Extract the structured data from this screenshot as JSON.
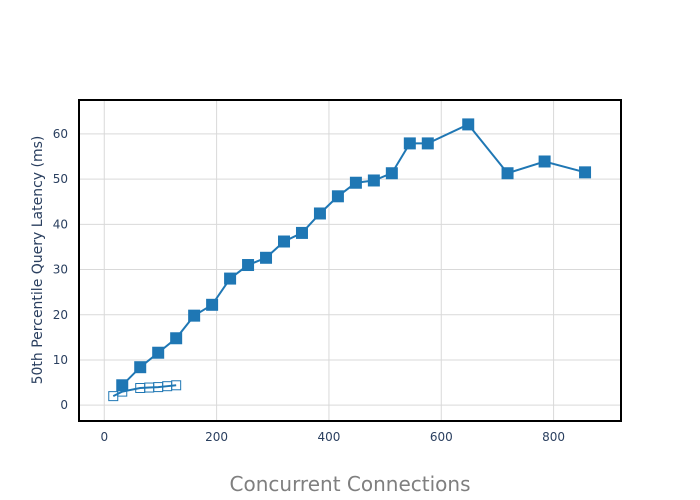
{
  "chart_data": {
    "type": "line",
    "title": "",
    "xlabel": "Concurrent Connections",
    "ylabel": "50th Percentile Query Latency (ms)",
    "xlim": [
      -45,
      920
    ],
    "ylim": [
      -3.5,
      67.5
    ],
    "xticks": [
      0,
      200,
      400,
      600,
      800
    ],
    "yticks": [
      0,
      10,
      20,
      30,
      40,
      50,
      60
    ],
    "grid": true,
    "legend": "none",
    "series": [
      {
        "name": "series-filled",
        "marker": "square-filled",
        "color": "#1f77b4",
        "x": [
          32,
          64,
          96,
          128,
          160,
          192,
          224,
          256,
          288,
          320,
          352,
          384,
          416,
          448,
          480,
          512,
          544,
          576,
          648,
          718,
          784,
          856
        ],
        "y": [
          4.4,
          8.4,
          11.6,
          14.8,
          19.8,
          22.2,
          28.0,
          31.0,
          32.6,
          36.2,
          38.1,
          42.4,
          46.2,
          49.2,
          49.7,
          51.3,
          57.9,
          57.9,
          62.1,
          51.3,
          53.9,
          51.5
        ]
      },
      {
        "name": "series-open",
        "marker": "square-open",
        "color": "#1f77b4",
        "x": [
          16,
          32,
          64,
          80,
          96,
          112,
          128
        ],
        "y": [
          2.0,
          3.0,
          3.8,
          3.9,
          4.0,
          4.2,
          4.4
        ]
      }
    ]
  }
}
